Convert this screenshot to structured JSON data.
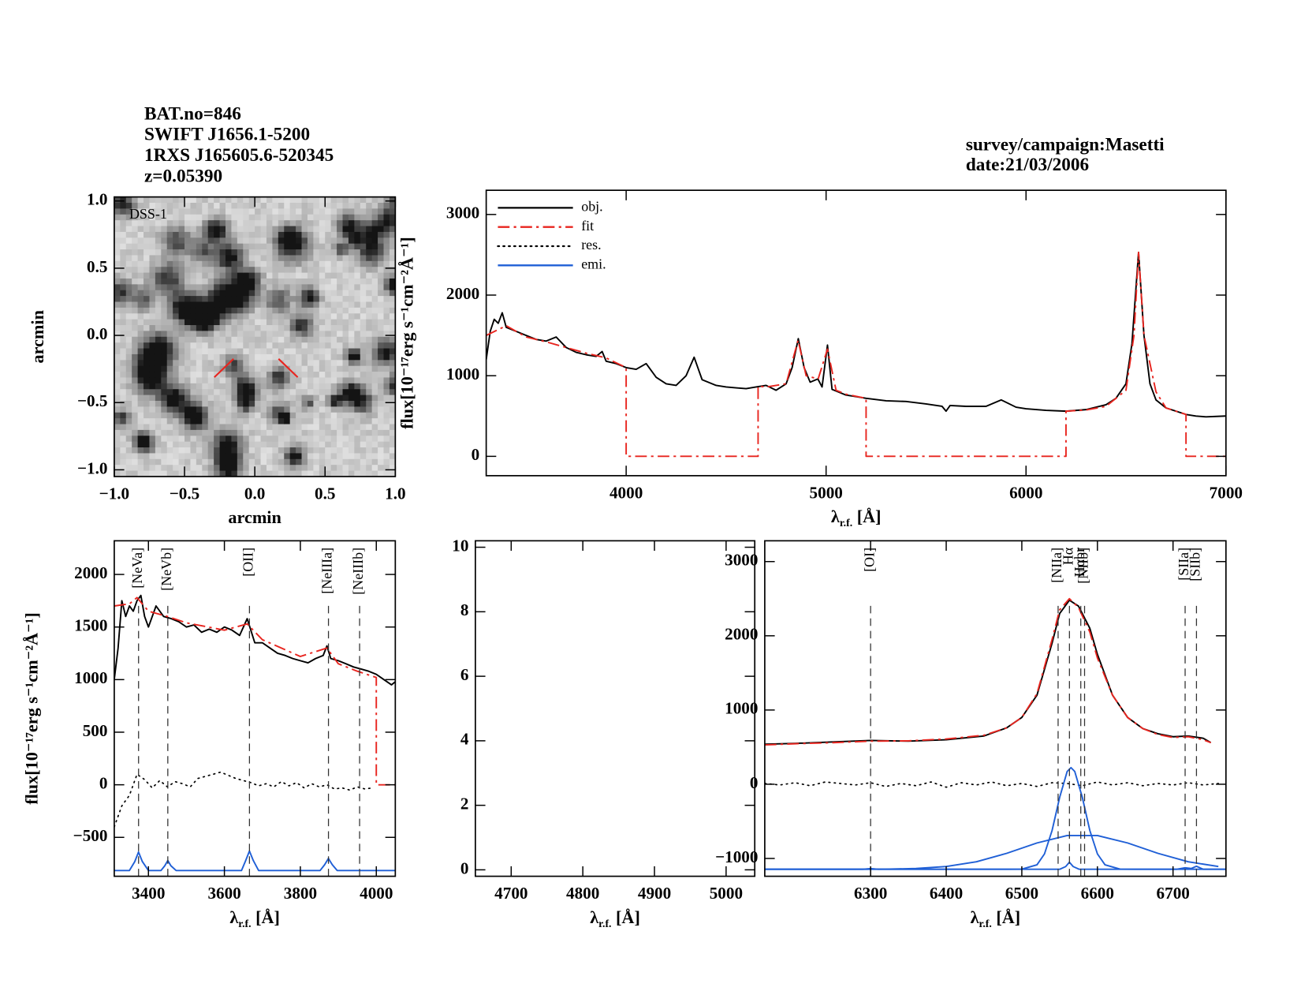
{
  "header": {
    "left": [
      "BAT.no=846",
      "SWIFT J1656.1-5200",
      "1RXS J165605.6-520345",
      "z=0.05390"
    ],
    "right": [
      "survey/campaign:Masetti",
      "date:21/03/2006"
    ]
  },
  "chart_data": [
    {
      "type": "image",
      "label": "DSS-1",
      "xlabel": "arcmin",
      "ylabel": "arcmin",
      "xlim": [
        -1,
        1
      ],
      "ylim": [
        -1.05,
        1.03
      ],
      "xticks": [
        {
          "value": -1,
          "label": "−1.0"
        },
        {
          "value": -0.5,
          "label": "−0.5"
        },
        {
          "value": 0,
          "label": "0.0"
        },
        0.5,
        {
          "value": 1,
          "label": "1.0"
        }
      ],
      "yticks": [
        {
          "value": -1,
          "label": "−1.0"
        },
        {
          "value": -0.5,
          "label": "−0.5"
        },
        {
          "value": 0,
          "label": "0.0"
        },
        0.5,
        {
          "value": 1,
          "label": "1.0"
        }
      ]
    },
    {
      "type": "line",
      "xlabel": [
        "λ",
        "r.f.",
        " [Å]"
      ],
      "ylabel": "flux[10⁻¹⁷erg s⁻¹cm⁻²Å⁻¹]",
      "xlim": [
        3300,
        7000
      ],
      "ylim": [
        -240,
        3300
      ],
      "xticks": [
        4000,
        5000,
        6000,
        7000
      ],
      "yticks": [
        0,
        1000,
        2000,
        3000
      ],
      "legend_corner": "upper left",
      "legend": [
        {
          "name": "obj.",
          "color": "#000000",
          "dash": "solid"
        },
        {
          "name": "fit",
          "color": "#e8251f",
          "dash": "dashdot"
        },
        {
          "name": "res.",
          "color": "#000000",
          "dash": "dotted"
        },
        {
          "name": "emi.",
          "color": "#1f5fd6",
          "dash": "solid"
        }
      ],
      "series": [
        {
          "color": "#000000",
          "dash": "solid",
          "x": [
            3300,
            3320,
            3340,
            3360,
            3380,
            3400,
            3450,
            3500,
            3550,
            3600,
            3650,
            3700,
            3750,
            3800,
            3850,
            3880,
            3900,
            3950,
            4000,
            4050,
            4100,
            4150,
            4200,
            4250,
            4300,
            4340,
            4380,
            4450,
            4500,
            4550,
            4600,
            4650,
            4700,
            4750,
            4800,
            4830,
            4861,
            4890,
            4920,
            4959,
            4980,
            5007,
            5030,
            5100,
            5150,
            5200,
            5300,
            5400,
            5500,
            5580,
            5600,
            5620,
            5700,
            5800,
            5876,
            5950,
            6000,
            6100,
            6200,
            6300,
            6400,
            6450,
            6500,
            6530,
            6563,
            6590,
            6620,
            6650,
            6700,
            6750,
            6800,
            6850,
            6900,
            7000
          ],
          "values": [
            1200,
            1550,
            1700,
            1650,
            1780,
            1600,
            1550,
            1500,
            1450,
            1430,
            1480,
            1350,
            1290,
            1260,
            1240,
            1300,
            1180,
            1150,
            1100,
            1080,
            1150,
            980,
            900,
            880,
            1000,
            1230,
            950,
            880,
            860,
            850,
            840,
            860,
            880,
            820,
            900,
            1100,
            1460,
            1100,
            920,
            960,
            860,
            1380,
            830,
            760,
            740,
            720,
            690,
            680,
            650,
            620,
            560,
            630,
            620,
            620,
            700,
            610,
            590,
            570,
            560,
            580,
            640,
            720,
            900,
            1400,
            2530,
            1500,
            900,
            700,
            600,
            560,
            520,
            500,
            490,
            500
          ]
        },
        {
          "color": "#e8251f",
          "dash": "dashdot",
          "x": [
            3300,
            3400,
            3500,
            3600,
            3700,
            3800,
            3900,
            4000,
            4000,
            4660,
            4660,
            4700,
            4800,
            4860,
            4900,
            4960,
            5007,
            5050,
            5100,
            5200,
            5200,
            6200,
            6200,
            6300,
            6400,
            6500,
            6540,
            6563,
            6590,
            6650,
            6700,
            6800,
            6800,
            7000
          ],
          "values": [
            1500,
            1620,
            1480,
            1420,
            1350,
            1280,
            1220,
            1100,
            0,
            0,
            870,
            860,
            900,
            1440,
            1000,
            960,
            1330,
            820,
            770,
            720,
            0,
            0,
            560,
            575,
            620,
            820,
            1500,
            2530,
            1500,
            800,
            600,
            520,
            0,
            0
          ]
        }
      ]
    },
    {
      "type": "line",
      "xlabel": [
        "λ",
        "r.f.",
        " [Å]"
      ],
      "ylabel": "flux[10⁻¹⁷erg s⁻¹cm⁻²Å⁻¹]",
      "xlim": [
        3310,
        4050
      ],
      "ylim": [
        -870,
        2320
      ],
      "xticks": [
        3400,
        3600,
        3800,
        4000
      ],
      "yticks": [
        {
          "value": -500,
          "label": "−500"
        },
        0,
        500,
        1000,
        1500,
        2000
      ],
      "lines": [
        {
          "label": "[NeVa]",
          "wavelength": 3374,
          "color": "#e8251f"
        },
        {
          "label": "[NeVb]",
          "wavelength": 3451,
          "color": "#e8251f"
        },
        {
          "label": "[OII]",
          "wavelength": 3666,
          "color": "#e8251f"
        },
        {
          "label": "[NeIIIa]",
          "wavelength": 3874,
          "color": "#e8251f"
        },
        {
          "label": "[NeIIIb]",
          "wavelength": 3956,
          "color": "#e8251f"
        }
      ],
      "series": [
        {
          "color": "#000000",
          "dash": "solid",
          "x": [
            3310,
            3320,
            3330,
            3340,
            3350,
            3360,
            3370,
            3380,
            3390,
            3400,
            3420,
            3440,
            3460,
            3480,
            3500,
            3520,
            3540,
            3560,
            3580,
            3600,
            3620,
            3640,
            3660,
            3680,
            3700,
            3720,
            3740,
            3760,
            3780,
            3800,
            3820,
            3840,
            3860,
            3870,
            3880,
            3900,
            3920,
            3940,
            3960,
            3980,
            4000,
            4020,
            4040,
            4050
          ],
          "values": [
            1000,
            1300,
            1750,
            1600,
            1700,
            1650,
            1750,
            1800,
            1600,
            1500,
            1700,
            1600,
            1580,
            1550,
            1500,
            1520,
            1450,
            1480,
            1450,
            1500,
            1470,
            1420,
            1580,
            1350,
            1350,
            1300,
            1250,
            1230,
            1200,
            1180,
            1160,
            1200,
            1230,
            1320,
            1200,
            1180,
            1150,
            1120,
            1100,
            1080,
            1050,
            1000,
            950,
            980
          ]
        },
        {
          "color": "#e8251f",
          "dash": "dashdot",
          "x": [
            3310,
            3350,
            3370,
            3400,
            3450,
            3500,
            3600,
            3660,
            3700,
            3800,
            3870,
            3900,
            3950,
            4000,
            4000,
            4050
          ],
          "values": [
            1700,
            1720,
            1780,
            1650,
            1600,
            1540,
            1470,
            1530,
            1380,
            1220,
            1300,
            1150,
            1080,
            1020,
            0,
            0
          ]
        },
        {
          "color": "#000000",
          "dash": "dotted",
          "x": [
            3310,
            3330,
            3350,
            3370,
            3390,
            3410,
            3430,
            3450,
            3470,
            3490,
            3510,
            3530,
            3550,
            3570,
            3590,
            3610,
            3630,
            3650,
            3670,
            3690,
            3710,
            3730,
            3750,
            3770,
            3790,
            3810,
            3830,
            3850,
            3870,
            3890,
            3910,
            3930,
            3950,
            3970,
            3990
          ],
          "values": [
            -400,
            -200,
            -100,
            100,
            50,
            -30,
            40,
            -20,
            30,
            10,
            -20,
            60,
            80,
            100,
            120,
            90,
            60,
            40,
            20,
            -10,
            10,
            -20,
            30,
            -10,
            20,
            -30,
            10,
            -20,
            0,
            -40,
            -30,
            -50,
            -20,
            -40,
            -30
          ]
        },
        {
          "color": "#1f5fd6",
          "dash": "solid",
          "x": [
            3310,
            3350,
            3364,
            3374,
            3384,
            3400,
            3433,
            3443,
            3451,
            3459,
            3473,
            3645,
            3656,
            3666,
            3676,
            3690,
            3852,
            3864,
            3874,
            3884,
            3897,
            4050
          ],
          "values": [
            -815,
            -815,
            -730,
            -640,
            -730,
            -815,
            -815,
            -770,
            -720,
            -770,
            -815,
            -815,
            -720,
            -630,
            -720,
            -815,
            -815,
            -760,
            -700,
            -760,
            -815,
            -815
          ]
        }
      ]
    },
    {
      "type": "line",
      "xlabel": [
        "λ",
        "r.f.",
        " [Å]"
      ],
      "xlim": [
        4650,
        5040
      ],
      "ylim": [
        -0.2,
        10.2
      ],
      "xticks": [
        4700,
        4800,
        4900,
        5000
      ],
      "yticks": [
        0,
        2,
        4,
        6,
        8,
        10
      ]
    },
    {
      "type": "line",
      "xlabel": [
        "λ",
        "r.f.",
        " [Å]"
      ],
      "xlim": [
        6160,
        6770
      ],
      "ylim": [
        -1240,
        3280
      ],
      "xticks": [
        6300,
        6400,
        6500,
        6600,
        6700
      ],
      "yticks": [
        {
          "value": -1000,
          "label": "−1000"
        },
        0,
        1000,
        2000,
        3000
      ],
      "lines": [
        {
          "label": "[OI]",
          "wavelength": 6300,
          "color": "#e8251f"
        },
        {
          "label": "[NIIa]",
          "wavelength": 6548,
          "color": "#000000"
        },
        {
          "label": "Hα",
          "wavelength": 6563,
          "color": "#000000"
        },
        {
          "label": "Hαbr",
          "wavelength": 6578,
          "color": "#000000"
        },
        {
          "label": "[NIIb]",
          "wavelength": 6583,
          "color": "#000000"
        },
        {
          "label": "[SIIa]",
          "wavelength": 6716,
          "color": "#000000"
        },
        {
          "label": "[SIIb]",
          "wavelength": 6731,
          "color": "#000000"
        }
      ],
      "series": [
        {
          "color": "#000000",
          "dash": "solid",
          "x": [
            6160,
            6200,
            6250,
            6300,
            6350,
            6400,
            6450,
            6480,
            6500,
            6520,
            6540,
            6550,
            6563,
            6575,
            6590,
            6600,
            6620,
            6640,
            6660,
            6680,
            6700,
            6720,
            6740,
            6750
          ],
          "values": [
            540,
            550,
            570,
            590,
            580,
            600,
            650,
            760,
            900,
            1200,
            1900,
            2300,
            2480,
            2400,
            2100,
            1750,
            1200,
            900,
            750,
            680,
            640,
            650,
            620,
            560
          ]
        },
        {
          "color": "#e8251f",
          "dash": "dashdot",
          "x": [
            6160,
            6200,
            6250,
            6300,
            6350,
            6400,
            6450,
            6480,
            6500,
            6520,
            6540,
            6550,
            6563,
            6575,
            6590,
            6600,
            6620,
            6640,
            6660,
            6680,
            6700,
            6720,
            6740,
            6750
          ],
          "values": [
            530,
            545,
            560,
            580,
            585,
            610,
            660,
            760,
            900,
            1220,
            1950,
            2350,
            2500,
            2380,
            2050,
            1700,
            1200,
            900,
            750,
            670,
            630,
            640,
            600,
            560
          ]
        },
        {
          "color": "#000000",
          "dash": "dotted",
          "x": [
            6160,
            6180,
            6200,
            6220,
            6240,
            6260,
            6280,
            6300,
            6320,
            6340,
            6360,
            6380,
            6400,
            6420,
            6440,
            6460,
            6480,
            6500,
            6520,
            6540,
            6560,
            6580,
            6600,
            6620,
            6640,
            6660,
            6680,
            6700,
            6720,
            6740,
            6760
          ],
          "values": [
            10,
            -10,
            20,
            -20,
            30,
            10,
            -10,
            20,
            -30,
            10,
            -20,
            30,
            -40,
            20,
            -10,
            30,
            -20,
            10,
            -30,
            20,
            10,
            -20,
            30,
            -10,
            20,
            -20,
            10,
            -10,
            20,
            -10,
            10
          ]
        },
        {
          "color": "#1f5fd6",
          "dash": "solid",
          "x": [
            6160,
            6200,
            6240,
            6280,
            6320,
            6360,
            6400,
            6440,
            6480,
            6520,
            6560,
            6600,
            6640,
            6680,
            6720,
            6760
          ],
          "values": [
            -1146,
            -1146,
            -1146,
            -1146,
            -1144,
            -1135,
            -1108,
            -1044,
            -931,
            -791,
            -691,
            -691,
            -791,
            -931,
            -1044,
            -1108
          ]
        },
        {
          "color": "#1f5fd6",
          "dash": "solid",
          "x": [
            6160,
            6480,
            6500,
            6520,
            6530,
            6540,
            6550,
            6560,
            6565,
            6570,
            6580,
            6590,
            6600,
            6610,
            6630,
            6650,
            6770
          ],
          "values": [
            -1146,
            -1146,
            -1144,
            -1086,
            -939,
            -624,
            -177,
            172,
            224,
            172,
            -177,
            -624,
            -939,
            -1086,
            -1144,
            -1146,
            -1146
          ]
        },
        {
          "color": "#1f5fd6",
          "dash": "solid",
          "x": [
            6160,
            6290,
            6300,
            6310,
            6550,
            6558,
            6563,
            6568,
            6576,
            6705,
            6716,
            6724,
            6731,
            6740,
            6770
          ],
          "values": [
            -1146,
            -1146,
            -1136,
            -1146,
            -1146,
            -1110,
            -1050,
            -1110,
            -1146,
            -1146,
            -1125,
            -1135,
            -1105,
            -1146,
            -1146
          ]
        }
      ]
    }
  ]
}
